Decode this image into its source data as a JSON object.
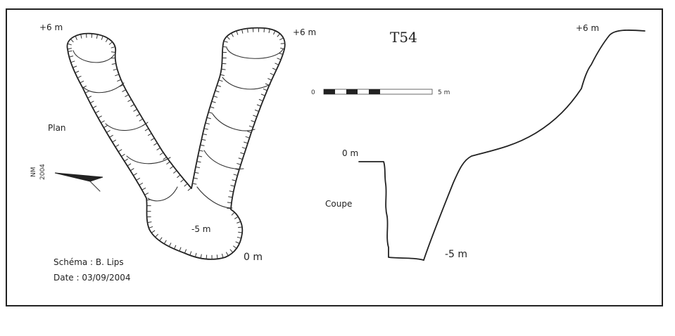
{
  "title": "T54",
  "plan": {
    "label": "Plan",
    "elev_left_top": "+6 m",
    "elev_right_top": "+6 m",
    "elev_mid": "-5 m",
    "elev_entrance": "0 m",
    "north_label_line1": "NM",
    "north_label_line2": "2004"
  },
  "scale": {
    "start": "0",
    "end": "5 m"
  },
  "section": {
    "label": "Coupe",
    "elev_top": "+6 m",
    "elev_entrance": "0 m",
    "elev_bottom": "-5 m"
  },
  "credits": {
    "schema": "Schéma : B. Lips",
    "date": "Date : 03/09/2004"
  }
}
